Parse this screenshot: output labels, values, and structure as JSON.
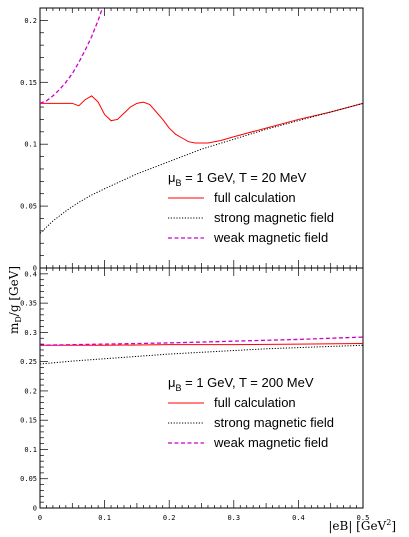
{
  "chart_data": [
    {
      "type": "line",
      "panel": "top",
      "xlim": [
        0,
        0.5
      ],
      "ylim": [
        0,
        0.21
      ],
      "x_ticks": [
        "0",
        "0.1",
        "0.2",
        "0.3",
        "0.4",
        "0.5"
      ],
      "y_ticks": [
        "0",
        "0.05",
        "0.1",
        "0.15",
        "0.2"
      ],
      "y_tick_values": [
        0,
        0.05,
        0.1,
        0.15,
        0.2
      ],
      "legend_title": {
        "mu": "μ",
        "sub": "B",
        "rest": " = 1 GeV, T = 20 MeV"
      },
      "series": [
        {
          "name": "full calculation",
          "color": "#ff0000",
          "dash": "solid",
          "x": [
            0,
            0.01,
            0.02,
            0.03,
            0.04,
            0.05,
            0.06,
            0.07,
            0.08,
            0.09,
            0.1,
            0.11,
            0.12,
            0.13,
            0.14,
            0.15,
            0.16,
            0.17,
            0.18,
            0.19,
            0.2,
            0.21,
            0.22,
            0.23,
            0.24,
            0.25,
            0.26,
            0.27,
            0.28,
            0.3,
            0.35,
            0.4,
            0.45,
            0.5
          ],
          "y": [
            0.133,
            0.133,
            0.133,
            0.133,
            0.133,
            0.133,
            0.131,
            0.136,
            0.139,
            0.134,
            0.124,
            0.119,
            0.12,
            0.125,
            0.13,
            0.133,
            0.134,
            0.132,
            0.126,
            0.12,
            0.113,
            0.108,
            0.105,
            0.102,
            0.101,
            0.101,
            0.101,
            0.102,
            0.103,
            0.106,
            0.113,
            0.12,
            0.126,
            0.133
          ]
        },
        {
          "name": "strong magnetic field",
          "color": "#000000",
          "dash": "dotted",
          "x": [
            0,
            0.01,
            0.02,
            0.04,
            0.06,
            0.08,
            0.1,
            0.125,
            0.15,
            0.175,
            0.2,
            0.225,
            0.25,
            0.275,
            0.3,
            0.35,
            0.4,
            0.45,
            0.5
          ],
          "y": [
            0.028,
            0.033,
            0.038,
            0.046,
            0.053,
            0.059,
            0.064,
            0.07,
            0.076,
            0.081,
            0.086,
            0.091,
            0.096,
            0.1,
            0.104,
            0.112,
            0.119,
            0.126,
            0.133
          ]
        },
        {
          "name": "weak magnetic field",
          "color": "#cc00cc",
          "dash": "dashed",
          "x": [
            0,
            0.01,
            0.02,
            0.03,
            0.04,
            0.05,
            0.06,
            0.07,
            0.08,
            0.09,
            0.098
          ],
          "y": [
            0.133,
            0.135,
            0.139,
            0.144,
            0.15,
            0.157,
            0.166,
            0.176,
            0.187,
            0.2,
            0.212
          ]
        }
      ]
    },
    {
      "type": "line",
      "panel": "bottom",
      "xlim": [
        0,
        0.5
      ],
      "ylim": [
        0,
        0.41
      ],
      "x_ticks": [
        "0",
        "0.1",
        "0.2",
        "0.3",
        "0.4",
        "0.5"
      ],
      "y_ticks": [
        "0",
        "0.05",
        "0.1",
        "0.15",
        "0.2",
        "0.25",
        "0.3",
        "0.35",
        "0.4"
      ],
      "y_tick_values": [
        0,
        0.05,
        0.1,
        0.15,
        0.2,
        0.25,
        0.3,
        0.35,
        0.4
      ],
      "xlabel": "|eB| [GeV",
      "xlabel_sup": "2",
      "xlabel_end": "]",
      "legend_title": {
        "mu": "μ",
        "sub": "B",
        "rest": " = 1 GeV, T = 200 MeV"
      },
      "series": [
        {
          "name": "full calculation",
          "color": "#ff0000",
          "dash": "solid",
          "x": [
            0,
            0.1,
            0.2,
            0.3,
            0.4,
            0.5
          ],
          "y": [
            0.278,
            0.278,
            0.279,
            0.279,
            0.28,
            0.281
          ]
        },
        {
          "name": "strong magnetic field",
          "color": "#000000",
          "dash": "dotted",
          "x": [
            0,
            0.05,
            0.1,
            0.15,
            0.2,
            0.25,
            0.3,
            0.35,
            0.4,
            0.45,
            0.5
          ],
          "y": [
            0.246,
            0.251,
            0.255,
            0.259,
            0.263,
            0.266,
            0.269,
            0.272,
            0.274,
            0.276,
            0.278
          ]
        },
        {
          "name": "weak magnetic field",
          "color": "#cc00cc",
          "dash": "dashed",
          "x": [
            0,
            0.1,
            0.2,
            0.3,
            0.4,
            0.5
          ],
          "y": [
            0.278,
            0.28,
            0.282,
            0.285,
            0.288,
            0.292
          ]
        }
      ]
    }
  ],
  "shared_ylabel": {
    "main": "m",
    "sub": "D",
    "rest": "/g [GeV]"
  }
}
